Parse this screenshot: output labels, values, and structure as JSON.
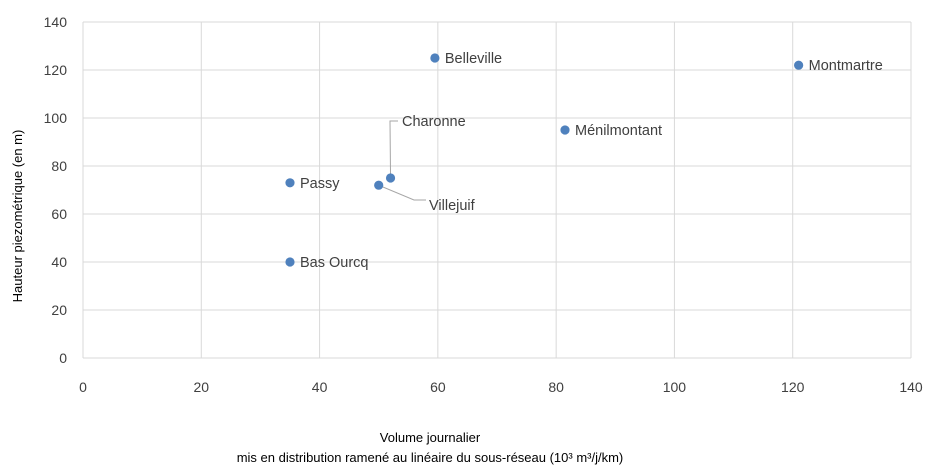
{
  "chart_data": {
    "type": "scatter",
    "xlabel_line1": "Volume journalier",
    "xlabel_line2": "mis en distribution ramené au linéaire du sous-réseau (10³ m³/j/km)",
    "ylabel": "Hauteur piezométrique (en m)",
    "xlim": [
      0,
      140
    ],
    "ylim": [
      0,
      140
    ],
    "xticks": [
      0,
      20,
      40,
      60,
      80,
      100,
      120,
      140
    ],
    "yticks": [
      0,
      20,
      40,
      60,
      80,
      100,
      120,
      140
    ],
    "grid": true,
    "legend": false,
    "marker_color": "#4f81bd",
    "points": [
      {
        "label": "Belleville",
        "x": 59.5,
        "y": 125
      },
      {
        "label": "Montmartre",
        "x": 121,
        "y": 122
      },
      {
        "label": "Ménilmontant",
        "x": 81.5,
        "y": 95
      },
      {
        "label": "Charonne",
        "x": 52,
        "y": 75
      },
      {
        "label": "Villejuif",
        "x": 50,
        "y": 72
      },
      {
        "label": "Passy",
        "x": 35,
        "y": 73
      },
      {
        "label": "Bas Ourcq",
        "x": 35,
        "y": 40
      }
    ]
  }
}
